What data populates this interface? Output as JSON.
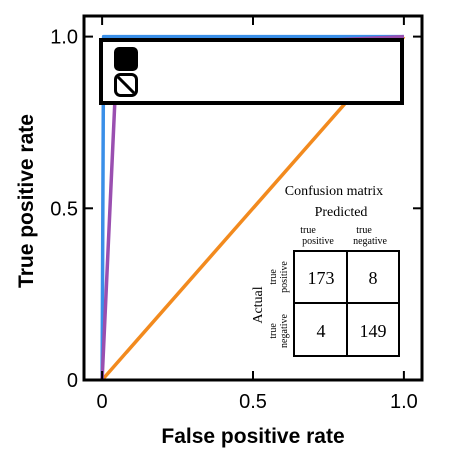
{
  "chart_data": {
    "type": "line",
    "xlabel": "False positive rate",
    "ylabel": "True positive rate",
    "xlim": [
      -0.06,
      1.06
    ],
    "ylim": [
      0,
      1.06
    ],
    "x_ticks": [
      {
        "value": 0,
        "label": "0"
      },
      {
        "value": 0.5,
        "label": "0.5"
      },
      {
        "value": 1.0,
        "label": "1.0"
      }
    ],
    "y_ticks": [
      {
        "value": 0,
        "label": "0"
      },
      {
        "value": 0.5,
        "label": "0.5"
      },
      {
        "value": 1.0,
        "label": "1.0"
      }
    ],
    "grid": false,
    "legend_placement": "top",
    "legend_markers": [
      {
        "style": "filled",
        "color": "#000000"
      },
      {
        "style": "hatched",
        "color": "#000000"
      }
    ],
    "series": [
      {
        "color": "#f28a1e",
        "x": [
          0,
          1
        ],
        "y": [
          0,
          1
        ]
      },
      {
        "color": "#3a8fe8",
        "x": [
          0,
          0.005,
          1
        ],
        "y": [
          0,
          1.0,
          1.0
        ]
      },
      {
        "color": "#9a4fb0",
        "x": [
          0,
          0.05,
          1
        ],
        "y": [
          0,
          0.96,
          1.0
        ]
      }
    ],
    "confusion_matrix": {
      "title": "Confusion matrix",
      "predicted_label": "Predicted",
      "actual_label": "Actual",
      "column_labels": [
        [
          "true",
          "positive"
        ],
        [
          "true",
          "negative"
        ]
      ],
      "row_labels": [
        [
          "true",
          "positive"
        ],
        [
          "true",
          "negative"
        ]
      ],
      "values": [
        [
          173,
          8
        ],
        [
          4,
          149
        ]
      ]
    }
  }
}
